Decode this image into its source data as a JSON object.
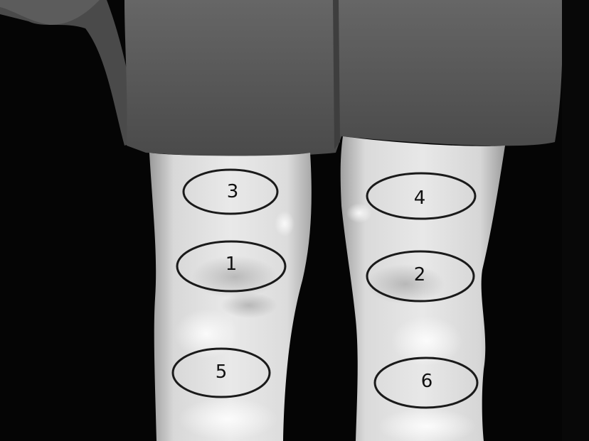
{
  "image": {
    "kind": "thermal-grayscale-photo",
    "subject": "knees-front-view",
    "colors": {
      "background": "#050505",
      "shorts": "#555555",
      "skin_highlight": "#f2f2f2",
      "roi_stroke": "#1a1a1a"
    }
  },
  "regions": [
    {
      "id": "roi-3",
      "label": "3"
    },
    {
      "id": "roi-4",
      "label": "4"
    },
    {
      "id": "roi-1",
      "label": "1"
    },
    {
      "id": "roi-2",
      "label": "2"
    },
    {
      "id": "roi-5",
      "label": "5"
    },
    {
      "id": "roi-6",
      "label": "6"
    }
  ]
}
